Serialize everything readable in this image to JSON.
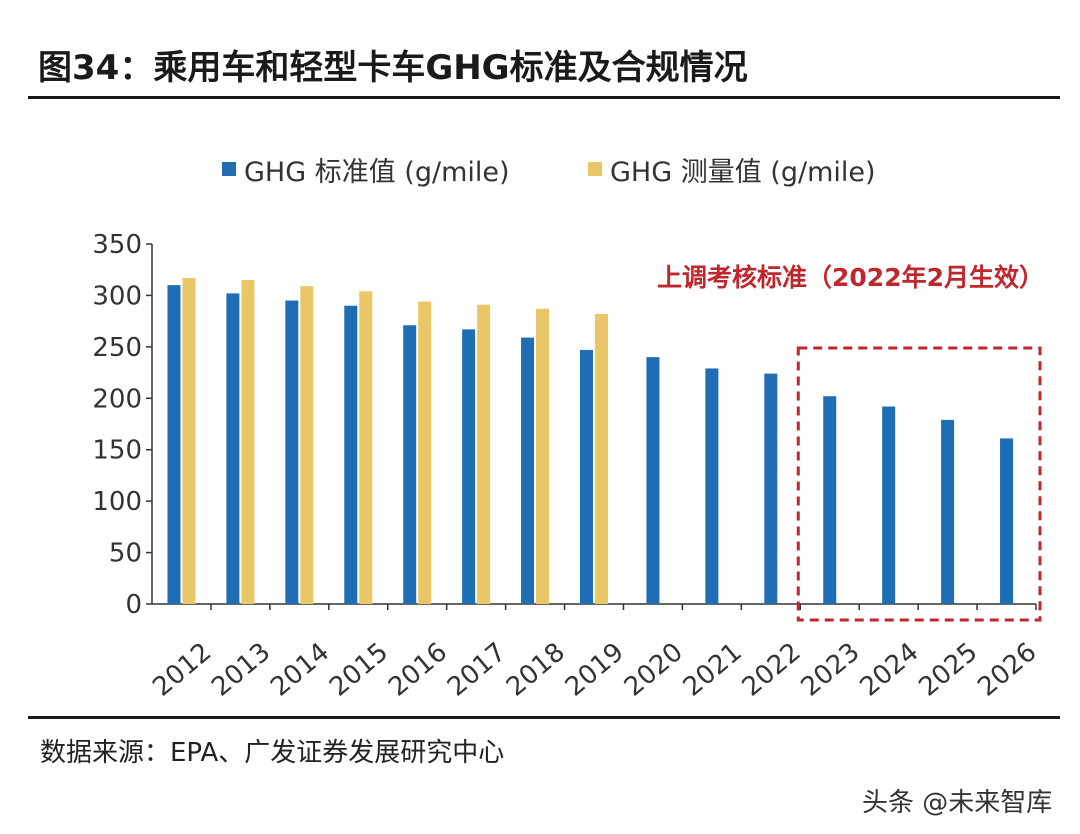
{
  "title": "图34：乘用车和轻型卡车GHG标准及合规情况",
  "source": "数据来源：EPA、广发证券发展研究中心",
  "watermark": "头条 @未来智库",
  "colors": {
    "standard": "#1f6db3",
    "measured": "#e9c766",
    "annotation": "#c0272d",
    "axis": "#333333"
  },
  "chart_data": {
    "type": "bar",
    "title": "",
    "xlabel": "",
    "ylabel": "",
    "ylim": [
      0,
      350
    ],
    "yticks": [
      0,
      50,
      100,
      150,
      200,
      250,
      300,
      350
    ],
    "categories": [
      "2012",
      "2013",
      "2014",
      "2015",
      "2016",
      "2017",
      "2018",
      "2019",
      "2020",
      "2021",
      "2022",
      "2023",
      "2024",
      "2025",
      "2026"
    ],
    "series": [
      {
        "name": "GHG 标准值 (g/mile)",
        "color_key": "standard",
        "values": [
          310,
          302,
          295,
          290,
          271,
          267,
          259,
          247,
          240,
          229,
          224,
          202,
          192,
          179,
          161
        ]
      },
      {
        "name": "GHG 测量值 (g/mile)",
        "color_key": "measured",
        "values": [
          317,
          315,
          309,
          304,
          294,
          291,
          287,
          282,
          null,
          null,
          null,
          null,
          null,
          null,
          null
        ]
      }
    ],
    "legend_position": "top",
    "annotation": {
      "text": "上调考核标准（2022年2月生效）",
      "from_category": "2023",
      "to_category": "2026"
    }
  }
}
